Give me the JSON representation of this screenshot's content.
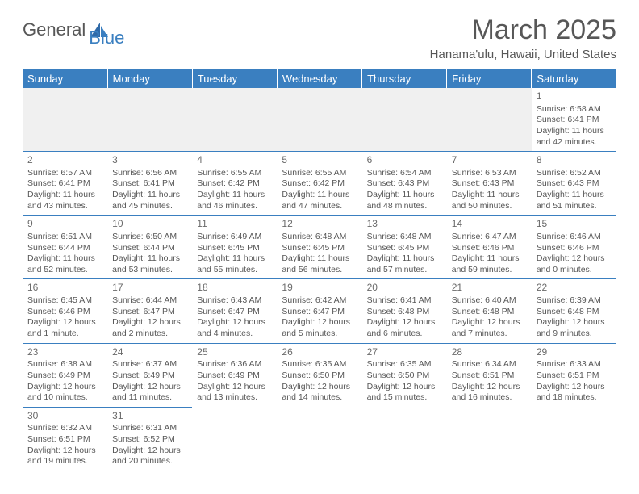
{
  "brand": {
    "name_left": "General",
    "name_right": "Blue"
  },
  "title": "March 2025",
  "location": "Hanama'ulu, Hawaii, United States",
  "colors": {
    "header_bg": "#3a7fc0",
    "header_text": "#ffffff",
    "body_bg": "#ffffff",
    "text": "#575757",
    "cell_border": "#3a7fc0",
    "first_row_bg": "#f0f0f0"
  },
  "day_labels": [
    "Sunday",
    "Monday",
    "Tuesday",
    "Wednesday",
    "Thursday",
    "Friday",
    "Saturday"
  ],
  "weeks": [
    [
      {
        "num": "",
        "sunrise": "",
        "sunset": "",
        "daylight": ""
      },
      {
        "num": "",
        "sunrise": "",
        "sunset": "",
        "daylight": ""
      },
      {
        "num": "",
        "sunrise": "",
        "sunset": "",
        "daylight": ""
      },
      {
        "num": "",
        "sunrise": "",
        "sunset": "",
        "daylight": ""
      },
      {
        "num": "",
        "sunrise": "",
        "sunset": "",
        "daylight": ""
      },
      {
        "num": "",
        "sunrise": "",
        "sunset": "",
        "daylight": ""
      },
      {
        "num": "1",
        "sunrise": "Sunrise: 6:58 AM",
        "sunset": "Sunset: 6:41 PM",
        "daylight": "Daylight: 11 hours and 42 minutes."
      }
    ],
    [
      {
        "num": "2",
        "sunrise": "Sunrise: 6:57 AM",
        "sunset": "Sunset: 6:41 PM",
        "daylight": "Daylight: 11 hours and 43 minutes."
      },
      {
        "num": "3",
        "sunrise": "Sunrise: 6:56 AM",
        "sunset": "Sunset: 6:41 PM",
        "daylight": "Daylight: 11 hours and 45 minutes."
      },
      {
        "num": "4",
        "sunrise": "Sunrise: 6:55 AM",
        "sunset": "Sunset: 6:42 PM",
        "daylight": "Daylight: 11 hours and 46 minutes."
      },
      {
        "num": "5",
        "sunrise": "Sunrise: 6:55 AM",
        "sunset": "Sunset: 6:42 PM",
        "daylight": "Daylight: 11 hours and 47 minutes."
      },
      {
        "num": "6",
        "sunrise": "Sunrise: 6:54 AM",
        "sunset": "Sunset: 6:43 PM",
        "daylight": "Daylight: 11 hours and 48 minutes."
      },
      {
        "num": "7",
        "sunrise": "Sunrise: 6:53 AM",
        "sunset": "Sunset: 6:43 PM",
        "daylight": "Daylight: 11 hours and 50 minutes."
      },
      {
        "num": "8",
        "sunrise": "Sunrise: 6:52 AM",
        "sunset": "Sunset: 6:43 PM",
        "daylight": "Daylight: 11 hours and 51 minutes."
      }
    ],
    [
      {
        "num": "9",
        "sunrise": "Sunrise: 6:51 AM",
        "sunset": "Sunset: 6:44 PM",
        "daylight": "Daylight: 11 hours and 52 minutes."
      },
      {
        "num": "10",
        "sunrise": "Sunrise: 6:50 AM",
        "sunset": "Sunset: 6:44 PM",
        "daylight": "Daylight: 11 hours and 53 minutes."
      },
      {
        "num": "11",
        "sunrise": "Sunrise: 6:49 AM",
        "sunset": "Sunset: 6:45 PM",
        "daylight": "Daylight: 11 hours and 55 minutes."
      },
      {
        "num": "12",
        "sunrise": "Sunrise: 6:48 AM",
        "sunset": "Sunset: 6:45 PM",
        "daylight": "Daylight: 11 hours and 56 minutes."
      },
      {
        "num": "13",
        "sunrise": "Sunrise: 6:48 AM",
        "sunset": "Sunset: 6:45 PM",
        "daylight": "Daylight: 11 hours and 57 minutes."
      },
      {
        "num": "14",
        "sunrise": "Sunrise: 6:47 AM",
        "sunset": "Sunset: 6:46 PM",
        "daylight": "Daylight: 11 hours and 59 minutes."
      },
      {
        "num": "15",
        "sunrise": "Sunrise: 6:46 AM",
        "sunset": "Sunset: 6:46 PM",
        "daylight": "Daylight: 12 hours and 0 minutes."
      }
    ],
    [
      {
        "num": "16",
        "sunrise": "Sunrise: 6:45 AM",
        "sunset": "Sunset: 6:46 PM",
        "daylight": "Daylight: 12 hours and 1 minute."
      },
      {
        "num": "17",
        "sunrise": "Sunrise: 6:44 AM",
        "sunset": "Sunset: 6:47 PM",
        "daylight": "Daylight: 12 hours and 2 minutes."
      },
      {
        "num": "18",
        "sunrise": "Sunrise: 6:43 AM",
        "sunset": "Sunset: 6:47 PM",
        "daylight": "Daylight: 12 hours and 4 minutes."
      },
      {
        "num": "19",
        "sunrise": "Sunrise: 6:42 AM",
        "sunset": "Sunset: 6:47 PM",
        "daylight": "Daylight: 12 hours and 5 minutes."
      },
      {
        "num": "20",
        "sunrise": "Sunrise: 6:41 AM",
        "sunset": "Sunset: 6:48 PM",
        "daylight": "Daylight: 12 hours and 6 minutes."
      },
      {
        "num": "21",
        "sunrise": "Sunrise: 6:40 AM",
        "sunset": "Sunset: 6:48 PM",
        "daylight": "Daylight: 12 hours and 7 minutes."
      },
      {
        "num": "22",
        "sunrise": "Sunrise: 6:39 AM",
        "sunset": "Sunset: 6:48 PM",
        "daylight": "Daylight: 12 hours and 9 minutes."
      }
    ],
    [
      {
        "num": "23",
        "sunrise": "Sunrise: 6:38 AM",
        "sunset": "Sunset: 6:49 PM",
        "daylight": "Daylight: 12 hours and 10 minutes."
      },
      {
        "num": "24",
        "sunrise": "Sunrise: 6:37 AM",
        "sunset": "Sunset: 6:49 PM",
        "daylight": "Daylight: 12 hours and 11 minutes."
      },
      {
        "num": "25",
        "sunrise": "Sunrise: 6:36 AM",
        "sunset": "Sunset: 6:49 PM",
        "daylight": "Daylight: 12 hours and 13 minutes."
      },
      {
        "num": "26",
        "sunrise": "Sunrise: 6:35 AM",
        "sunset": "Sunset: 6:50 PM",
        "daylight": "Daylight: 12 hours and 14 minutes."
      },
      {
        "num": "27",
        "sunrise": "Sunrise: 6:35 AM",
        "sunset": "Sunset: 6:50 PM",
        "daylight": "Daylight: 12 hours and 15 minutes."
      },
      {
        "num": "28",
        "sunrise": "Sunrise: 6:34 AM",
        "sunset": "Sunset: 6:51 PM",
        "daylight": "Daylight: 12 hours and 16 minutes."
      },
      {
        "num": "29",
        "sunrise": "Sunrise: 6:33 AM",
        "sunset": "Sunset: 6:51 PM",
        "daylight": "Daylight: 12 hours and 18 minutes."
      }
    ],
    [
      {
        "num": "30",
        "sunrise": "Sunrise: 6:32 AM",
        "sunset": "Sunset: 6:51 PM",
        "daylight": "Daylight: 12 hours and 19 minutes."
      },
      {
        "num": "31",
        "sunrise": "Sunrise: 6:31 AM",
        "sunset": "Sunset: 6:52 PM",
        "daylight": "Daylight: 12 hours and 20 minutes."
      },
      {
        "num": "",
        "sunrise": "",
        "sunset": "",
        "daylight": ""
      },
      {
        "num": "",
        "sunrise": "",
        "sunset": "",
        "daylight": ""
      },
      {
        "num": "",
        "sunrise": "",
        "sunset": "",
        "daylight": ""
      },
      {
        "num": "",
        "sunrise": "",
        "sunset": "",
        "daylight": ""
      },
      {
        "num": "",
        "sunrise": "",
        "sunset": "",
        "daylight": ""
      }
    ]
  ]
}
